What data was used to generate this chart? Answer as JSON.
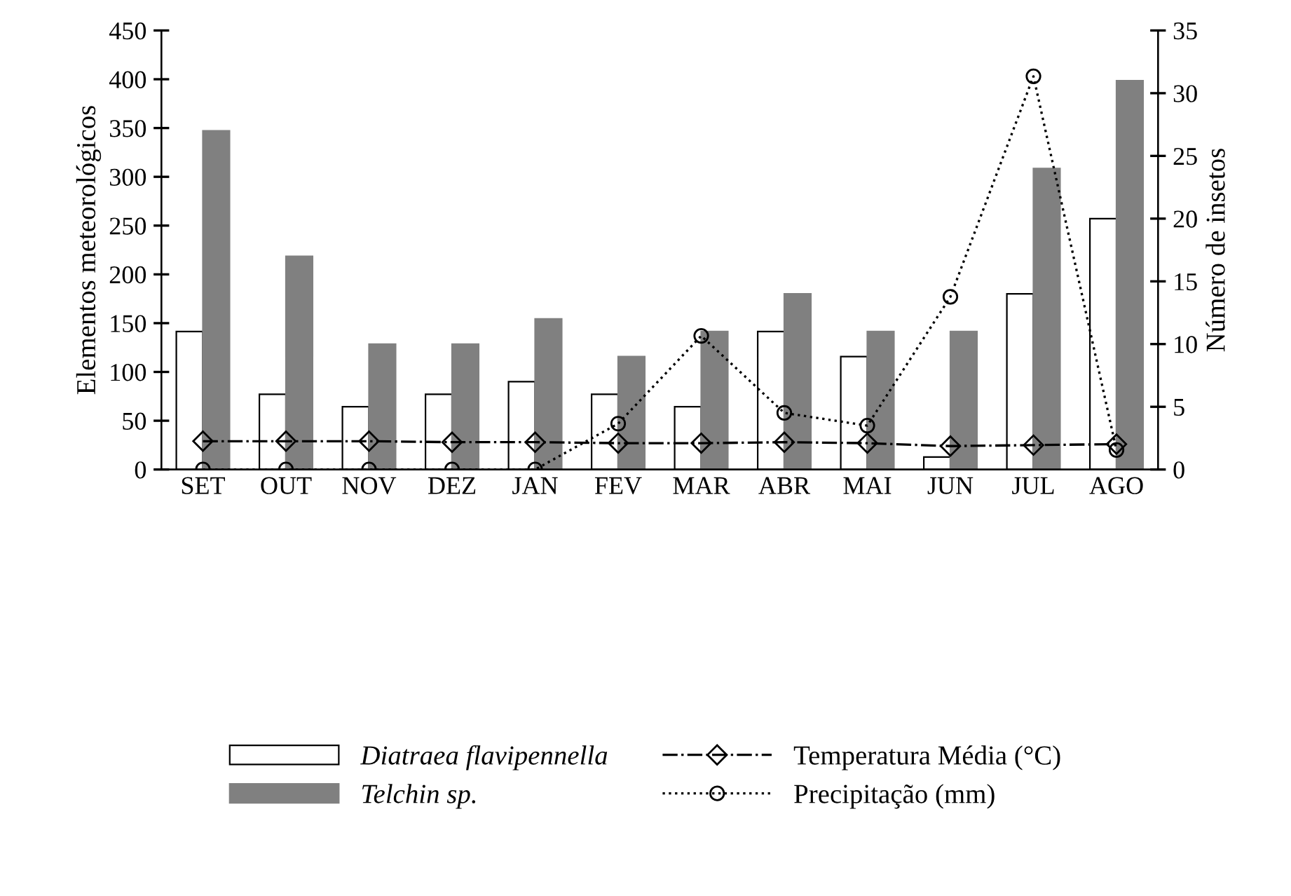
{
  "chart_data": {
    "type": "bar",
    "ylabel": "Elementos meteorológicos",
    "y2label": "Número de insetos",
    "categories": [
      "SET",
      "OUT",
      "NOV",
      "DEZ",
      "JAN",
      "FEV",
      "MAR",
      "ABR",
      "MAI",
      "JUN",
      "JUL",
      "AGO"
    ],
    "series": [
      {
        "name": "Diatraea flavipennella",
        "axis": "y2",
        "color": "#ffffff",
        "values": [
          11,
          6,
          5,
          6,
          7,
          6,
          5,
          11,
          9,
          1,
          14,
          20
        ]
      },
      {
        "name": "Telchin sp.",
        "axis": "y2",
        "color": "#808080",
        "values": [
          27,
          17,
          10,
          10,
          12,
          9,
          11,
          14,
          11,
          11,
          24,
          31
        ]
      },
      {
        "name": "Temperatura Média (°C)",
        "type": "line",
        "color": "#000000",
        "marker": "diamond",
        "line_style": "dashdot",
        "values": [
          29,
          29,
          29,
          28,
          28,
          27,
          27,
          28,
          27,
          24,
          25,
          26
        ]
      },
      {
        "name": "Precipitação (mm)",
        "type": "line",
        "color": "#000000",
        "marker": "circle",
        "line_style": "dotted",
        "values": [
          0,
          0,
          0,
          0,
          0,
          47,
          137,
          58,
          45,
          177,
          403,
          20
        ]
      }
    ],
    "ylim": [
      0,
      450
    ],
    "yticks": [
      0,
      50,
      100,
      150,
      200,
      250,
      300,
      350,
      400,
      450
    ],
    "y2lim": [
      0,
      35
    ],
    "y2ticks": [
      0,
      5,
      10,
      15,
      20,
      25,
      30,
      35
    ],
    "grid": false,
    "legend": "bottom"
  }
}
